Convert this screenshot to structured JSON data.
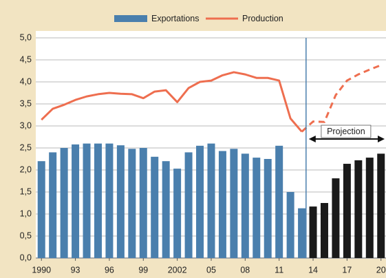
{
  "chart_data": {
    "type": "bar_line",
    "categories": [
      "1990",
      null,
      null,
      "93",
      null,
      null,
      "96",
      null,
      null,
      "99",
      null,
      null,
      "2002",
      null,
      null,
      "05",
      null,
      null,
      "08",
      null,
      null,
      "11",
      null,
      null,
      "14",
      null,
      null,
      "17",
      null,
      null,
      "20"
    ],
    "series": [
      {
        "name": "Exportations",
        "type": "bar",
        "color": "#4a7fad",
        "projection_color": "#1a1a1a",
        "values": [
          2.2,
          2.4,
          2.5,
          2.58,
          2.6,
          2.6,
          2.6,
          2.56,
          2.48,
          2.5,
          2.3,
          2.2,
          2.03,
          2.4,
          2.55,
          2.6,
          2.43,
          2.48,
          2.37,
          2.28,
          2.25,
          2.55,
          1.5,
          1.13,
          1.17,
          1.25,
          1.81,
          2.14,
          2.22,
          2.28,
          2.37
        ]
      },
      {
        "name": "Production",
        "type": "line",
        "color": "#ee6e4f",
        "values": [
          3.14,
          3.39,
          3.48,
          3.59,
          3.67,
          3.72,
          3.75,
          3.73,
          3.72,
          3.63,
          3.78,
          3.81,
          3.54,
          3.86,
          4.0,
          4.03,
          4.15,
          4.22,
          4.17,
          4.09,
          4.09,
          4.03,
          3.17,
          2.87,
          3.1,
          3.09,
          3.7,
          4.03,
          4.17,
          4.28,
          4.38
        ]
      }
    ],
    "projection_start_index": 24,
    "projection_label": "Projection",
    "ylim": [
      0,
      5
    ],
    "yticks": [
      {
        "value": 0,
        "label": "0,0"
      },
      {
        "value": 0.5,
        "label": "0,5"
      },
      {
        "value": 1,
        "label": "1,0"
      },
      {
        "value": 1.5,
        "label": "1,5"
      },
      {
        "value": 2,
        "label": "2,0"
      },
      {
        "value": 2.5,
        "label": "2,5"
      },
      {
        "value": 3,
        "label": "3,0"
      },
      {
        "value": 3.5,
        "label": "3,5"
      },
      {
        "value": 4,
        "label": "4,0"
      },
      {
        "value": 4.5,
        "label": "4,5"
      },
      {
        "value": 5,
        "label": "5,0"
      }
    ],
    "grid": true
  }
}
